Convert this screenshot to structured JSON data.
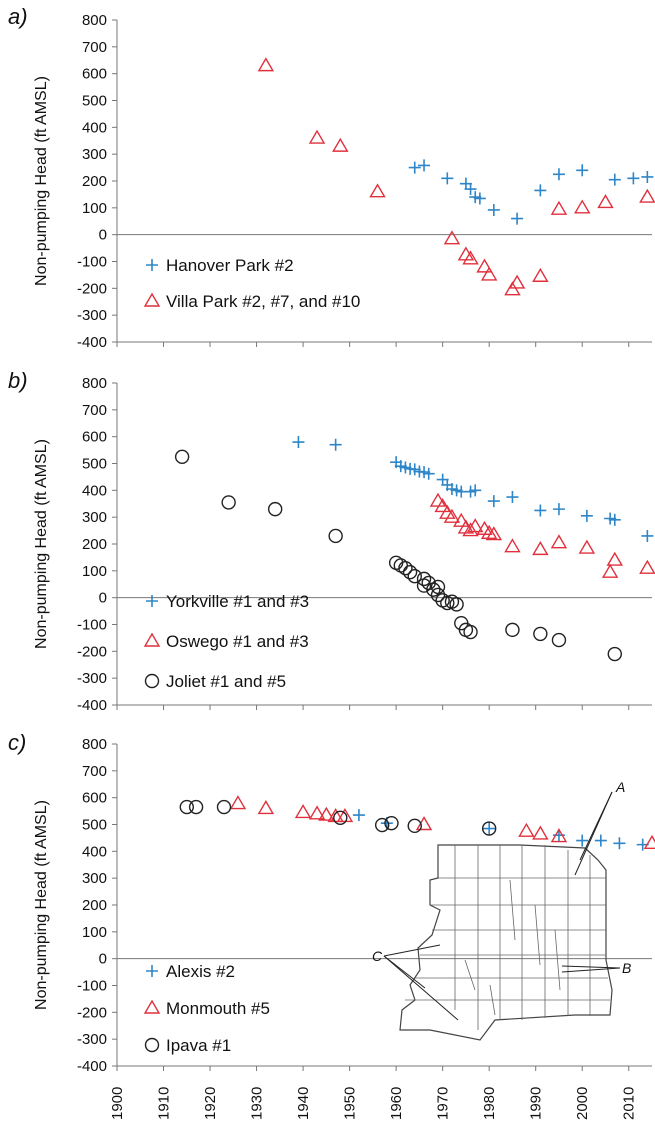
{
  "chart_data": [
    {
      "type": "scatter",
      "panel": "a)",
      "ylabel": "Non-pumping Head (ft AMSL)",
      "xlim": [
        1900,
        2015
      ],
      "ylim": [
        -400,
        800
      ],
      "yticks": [
        -400,
        -300,
        -200,
        -100,
        0,
        100,
        200,
        300,
        400,
        500,
        600,
        700,
        800
      ],
      "legend_position": "bottom-left",
      "series": [
        {
          "name": "Hanover Park #2",
          "marker": "plus",
          "color": "#2E86C8",
          "points": [
            [
              1964,
              250
            ],
            [
              1966,
              258
            ],
            [
              1971,
              210
            ],
            [
              1975,
              190
            ],
            [
              1976,
              170
            ],
            [
              1977,
              140
            ],
            [
              1978,
              135
            ],
            [
              1981,
              92
            ],
            [
              1986,
              60
            ],
            [
              1991,
              165
            ],
            [
              1995,
              225
            ],
            [
              2000,
              240
            ],
            [
              2007,
              205
            ],
            [
              2011,
              210
            ],
            [
              2014,
              215
            ]
          ]
        },
        {
          "name": "Villa Park #2, #7, and #10",
          "marker": "triangle",
          "color": "#E0303C",
          "points": [
            [
              1932,
              630
            ],
            [
              1943,
              360
            ],
            [
              1948,
              330
            ],
            [
              1956,
              160
            ],
            [
              1972,
              -15
            ],
            [
              1975,
              -75
            ],
            [
              1976,
              -90
            ],
            [
              1979,
              -120
            ],
            [
              1980,
              -150
            ],
            [
              1985,
              -205
            ],
            [
              1986,
              -180
            ],
            [
              1991,
              -155
            ],
            [
              1995,
              95
            ],
            [
              2000,
              100
            ],
            [
              2005,
              120
            ],
            [
              2014,
              140
            ]
          ]
        }
      ]
    },
    {
      "type": "scatter",
      "panel": "b)",
      "ylabel": "Non-pumping Head (ft AMSL)",
      "xlim": [
        1900,
        2015
      ],
      "ylim": [
        -400,
        800
      ],
      "yticks": [
        -400,
        -300,
        -200,
        -100,
        0,
        100,
        200,
        300,
        400,
        500,
        600,
        700,
        800
      ],
      "legend_position": "bottom-left",
      "series": [
        {
          "name": "Yorkville #1 and #3",
          "marker": "plus",
          "color": "#2E86C8",
          "points": [
            [
              1939,
              580
            ],
            [
              1947,
              570
            ],
            [
              1960,
              505
            ],
            [
              1961,
              490
            ],
            [
              1962,
              485
            ],
            [
              1963,
              480
            ],
            [
              1964,
              478
            ],
            [
              1965,
              470
            ],
            [
              1966,
              468
            ],
            [
              1967,
              462
            ],
            [
              1970,
              440
            ],
            [
              1971,
              420
            ],
            [
              1972,
              405
            ],
            [
              1973,
              400
            ],
            [
              1974,
              395
            ],
            [
              1976,
              395
            ],
            [
              1977,
              400
            ],
            [
              1981,
              360
            ],
            [
              1985,
              375
            ],
            [
              1991,
              325
            ],
            [
              1995,
              330
            ],
            [
              2001,
              305
            ],
            [
              2006,
              295
            ],
            [
              2007,
              290
            ],
            [
              2014,
              230
            ]
          ]
        },
        {
          "name": "Oswego #1 and #3",
          "marker": "triangle",
          "color": "#E0303C",
          "points": [
            [
              1969,
              360
            ],
            [
              1970,
              340
            ],
            [
              1971,
              315
            ],
            [
              1972,
              300
            ],
            [
              1974,
              285
            ],
            [
              1975,
              260
            ],
            [
              1976,
              250
            ],
            [
              1977,
              265
            ],
            [
              1979,
              255
            ],
            [
              1980,
              240
            ],
            [
              1981,
              235
            ],
            [
              1985,
              190
            ],
            [
              1991,
              180
            ],
            [
              1995,
              205
            ],
            [
              2001,
              185
            ],
            [
              2006,
              95
            ],
            [
              2007,
              140
            ],
            [
              2014,
              110
            ]
          ]
        },
        {
          "name": "Joliet #1 and #5",
          "marker": "circle",
          "color": "#222222",
          "points": [
            [
              1914,
              525
            ],
            [
              1924,
              355
            ],
            [
              1934,
              330
            ],
            [
              1947,
              230
            ],
            [
              1960,
              130
            ],
            [
              1961,
              120
            ],
            [
              1962,
              110
            ],
            [
              1963,
              95
            ],
            [
              1964,
              80
            ],
            [
              1966,
              70
            ],
            [
              1967,
              55
            ],
            [
              1968,
              30
            ],
            [
              1969,
              10
            ],
            [
              1970,
              -10
            ],
            [
              1971,
              -20
            ],
            [
              1972,
              -15
            ],
            [
              1973,
              -25
            ],
            [
              1966,
              45
            ],
            [
              1969,
              40
            ],
            [
              1974,
              -95
            ],
            [
              1975,
              -120
            ],
            [
              1976,
              -128
            ],
            [
              1985,
              -120
            ],
            [
              1991,
              -135
            ],
            [
              1995,
              -158
            ],
            [
              2007,
              -210
            ]
          ]
        }
      ]
    },
    {
      "type": "scatter",
      "panel": "c)",
      "ylabel": "Non-pumping Head (ft AMSL)",
      "xlim": [
        1900,
        2015
      ],
      "ylim": [
        -400,
        800
      ],
      "xticks": [
        1900,
        1910,
        1920,
        1930,
        1940,
        1950,
        1960,
        1970,
        1980,
        1990,
        2000,
        2010
      ],
      "yticks": [
        -400,
        -300,
        -200,
        -100,
        0,
        100,
        200,
        300,
        400,
        500,
        600,
        700,
        800
      ],
      "legend_position": "bottom-left",
      "series": [
        {
          "name": "Alexis #2",
          "marker": "plus",
          "color": "#2E86C8",
          "points": [
            [
              1952,
              535
            ],
            [
              1958,
              505
            ],
            [
              1980,
              485
            ],
            [
              1995,
              460
            ],
            [
              2000,
              440
            ],
            [
              2004,
              440
            ],
            [
              2008,
              430
            ],
            [
              2013,
              425
            ]
          ]
        },
        {
          "name": "Monmouth #5",
          "marker": "triangle",
          "color": "#E0303C",
          "points": [
            [
              1926,
              578
            ],
            [
              1932,
              560
            ],
            [
              1940,
              545
            ],
            [
              1943,
              540
            ],
            [
              1945,
              535
            ],
            [
              1947,
              530
            ],
            [
              1949,
              530
            ],
            [
              1966,
              500
            ],
            [
              1988,
              475
            ],
            [
              1991,
              465
            ],
            [
              1995,
              455
            ],
            [
              2015,
              430
            ]
          ]
        },
        {
          "name": "Ipava #1",
          "marker": "circle",
          "color": "#222222",
          "points": [
            [
              1915,
              565
            ],
            [
              1917,
              565
            ],
            [
              1923,
              565
            ],
            [
              1948,
              525
            ],
            [
              1957,
              498
            ],
            [
              1959,
              505
            ],
            [
              1964,
              495
            ],
            [
              1980,
              485
            ]
          ]
        }
      ],
      "inset_map_labels": [
        "A",
        "B",
        "C"
      ]
    }
  ]
}
